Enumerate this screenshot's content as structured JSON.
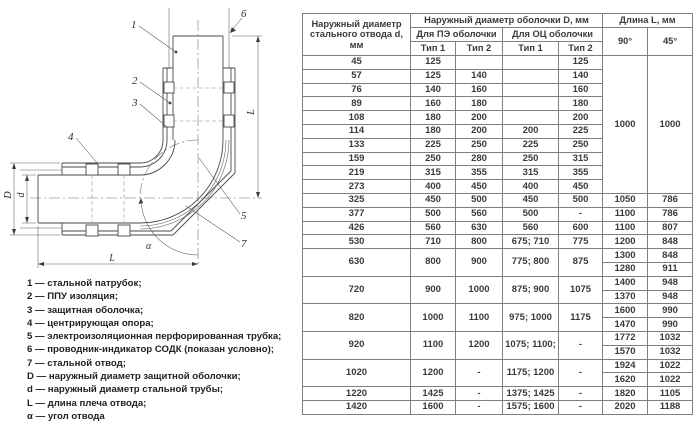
{
  "diagram": {
    "callouts": {
      "c1": "1",
      "c2": "2",
      "c3": "3",
      "c4": "4",
      "c5": "5",
      "c6": "6",
      "c7": "7"
    },
    "dims": {
      "D": "D",
      "d": "d",
      "L_right": "L",
      "L_bottom": "L",
      "alpha": "α"
    },
    "legend": [
      "1 — стальной патрубок;",
      "2 — ППУ изоляция;",
      "3 — защитная оболочка;",
      "4 — центрирующая опора;",
      "5 — электроизоляционная перфорированная трубка;",
      "6 — проводник-индикатор СОДК (показан условно);",
      "7 — стальной отвод;",
      "D — наружный диаметр защитной оболочки;",
      "d — наружный диаметр стальной трубы;",
      "L — длина плеча отвода;",
      "α — угол отвода"
    ]
  },
  "table": {
    "header": {
      "d": "Наружный диаметр стального отвода d, мм",
      "shell": "Наружный диаметр оболочки D, мм",
      "pe": "Для ПЭ оболочки",
      "oc": "Для ОЦ оболочки",
      "type1": "Тип 1",
      "type2": "Тип 2",
      "length": "Длина L, мм",
      "a90": "90°",
      "a45": "45°"
    },
    "rows": [
      [
        {
          "t": "45"
        },
        "125",
        "",
        "",
        "125",
        {
          "t": "1000",
          "rs": 10
        },
        {
          "t": "1000",
          "rs": 10
        }
      ],
      [
        "57",
        "125",
        "140",
        "",
        "140"
      ],
      [
        "76",
        "140",
        "160",
        "",
        "160"
      ],
      [
        "89",
        "160",
        "180",
        "",
        "180"
      ],
      [
        "108",
        "180",
        "200",
        "",
        "200"
      ],
      [
        "114",
        "180",
        "200",
        "200",
        "225"
      ],
      [
        "133",
        "225",
        "250",
        "225",
        "250"
      ],
      [
        "159",
        "250",
        "280",
        "250",
        "315"
      ],
      [
        "219",
        "315",
        "355",
        "315",
        "355"
      ],
      [
        "273",
        "400",
        "450",
        "400",
        "450"
      ],
      [
        "325",
        "450",
        "500",
        "450",
        "500",
        "1050",
        "786"
      ],
      [
        "377",
        "500",
        "560",
        "500",
        "-",
        "1100",
        "786"
      ],
      [
        "426",
        "560",
        "630",
        "560",
        "600",
        "1100",
        "807"
      ],
      [
        "530",
        "710",
        "800",
        "675; 710",
        "775",
        "1200",
        "848"
      ],
      [
        {
          "t": "630",
          "rs": 2
        },
        {
          "t": "800",
          "rs": 2
        },
        {
          "t": "900",
          "rs": 2
        },
        {
          "t": "775; 800",
          "rs": 2
        },
        {
          "t": "875",
          "rs": 2
        },
        "1300",
        "848"
      ],
      [
        "1280",
        "911"
      ],
      [
        {
          "t": "720",
          "rs": 2
        },
        {
          "t": "900",
          "rs": 2
        },
        {
          "t": "1000",
          "rs": 2
        },
        {
          "t": "875; 900",
          "rs": 2
        },
        {
          "t": "1075",
          "rs": 2
        },
        "1400",
        "948"
      ],
      [
        "1370",
        "948"
      ],
      [
        {
          "t": "820",
          "rs": 2
        },
        {
          "t": "1000",
          "rs": 2
        },
        {
          "t": "1100",
          "rs": 2
        },
        {
          "t": "975; 1000",
          "rs": 2
        },
        {
          "t": "1175",
          "rs": 2
        },
        "1600",
        "990"
      ],
      [
        "1470",
        "990"
      ],
      [
        {
          "t": "920",
          "rs": 2
        },
        {
          "t": "1100",
          "rs": 2
        },
        {
          "t": "1200",
          "rs": 2
        },
        {
          "t": "1075; 1100;",
          "rs": 2
        },
        {
          "t": "-",
          "rs": 2
        },
        "1772",
        "1032"
      ],
      [
        "1570",
        "1032"
      ],
      [
        {
          "t": "1020",
          "rs": 2
        },
        {
          "t": "1200",
          "rs": 2
        },
        {
          "t": "-",
          "rs": 2
        },
        {
          "t": "1175; 1200",
          "rs": 2
        },
        {
          "t": "-",
          "rs": 2
        },
        "1924",
        "1022"
      ],
      [
        "1620",
        "1022"
      ],
      [
        "1220",
        "1425",
        "-",
        "1375; 1425",
        "-",
        "1820",
        "1105"
      ],
      [
        "1420",
        "1600",
        "-",
        "1575; 1600",
        "-",
        "2020",
        "1188"
      ]
    ]
  }
}
